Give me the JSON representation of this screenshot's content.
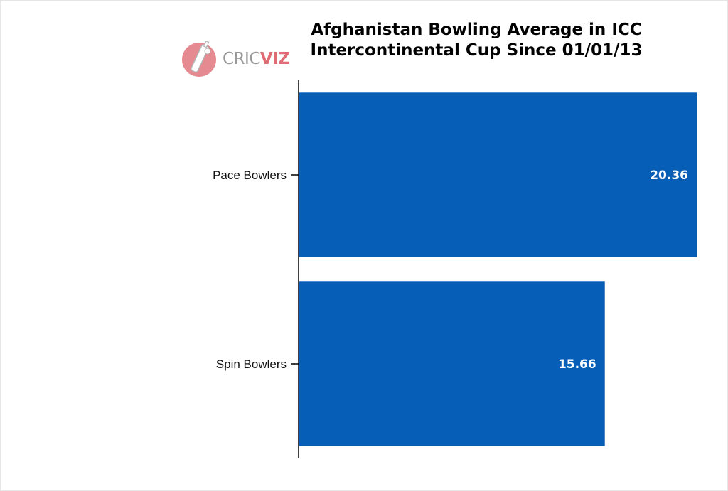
{
  "chart_data": {
    "type": "bar",
    "orientation": "horizontal",
    "title": "Afghanistan Bowling Average in ICC Intercontinental Cup Since 01/01/13",
    "title_lines": [
      "Afghanistan Bowling Average in ICC",
      "Intercontinental Cup Since 01/01/13"
    ],
    "categories": [
      "Pace Bowlers",
      "Spin Bowlers"
    ],
    "values": [
      20.36,
      15.66
    ],
    "value_labels": [
      "20.36",
      "15.66"
    ],
    "bar_color": "#075eb7",
    "xlim": [
      0,
      20.36
    ],
    "grid": false,
    "legend": "none"
  },
  "logo": {
    "text_plain": "CRIC",
    "text_accent": "VIZ",
    "accent_color": "#e06b74",
    "icon": "cricket-bat-ball-icon"
  }
}
